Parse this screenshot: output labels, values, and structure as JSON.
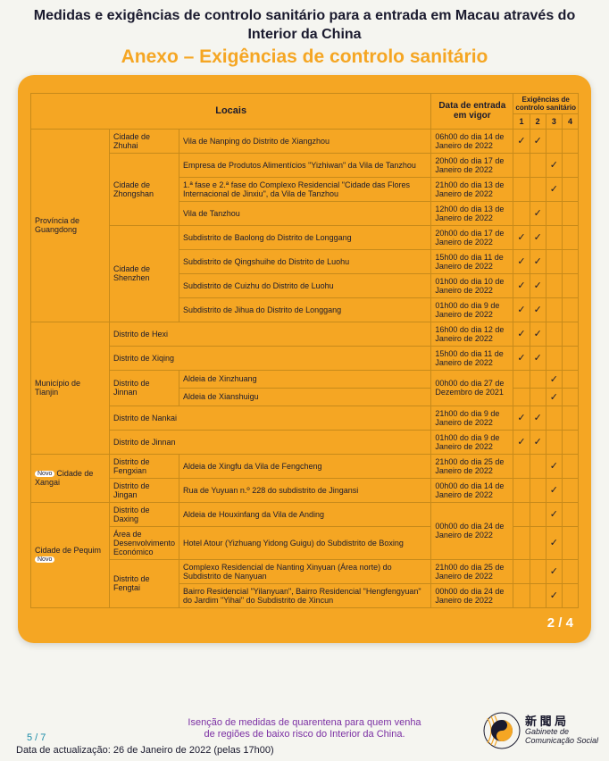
{
  "header": {
    "title": "Medidas e exigências de controlo sanitário para a entrada em Macau através do Interior da China",
    "subtitle": "Anexo – Exigências de controlo sanitário"
  },
  "table": {
    "headers": {
      "locais": "Locais",
      "data": "Data de entrada em vigor",
      "exig": "Exigências de controlo sanitário",
      "c1": "1",
      "c2": "2",
      "c3": "3",
      "c4": "4"
    },
    "groups": [
      {
        "province": "Província de Guangdong",
        "rowspan": 8,
        "cityBlocks": [
          {
            "city": "Cidade de Zhuhai",
            "rows": [
              {
                "detail": "Vila de Nanping do Distrito de Xiangzhou",
                "date": "06h00 do dia 14 de Janeiro de 2022",
                "c": [
                  true,
                  true,
                  false,
                  false
                ]
              }
            ]
          },
          {
            "city": "Cidade de Zhongshan",
            "rows": [
              {
                "detail": "Empresa de Produtos Alimentícios \"Yizhiwan\" da Vila de Tanzhou",
                "date": "20h00 do dia 17 de Janeiro de 2022",
                "c": [
                  false,
                  false,
                  true,
                  false
                ]
              },
              {
                "detail": "1.ª fase e 2.ª fase do Complexo Residencial \"Cidade das Flores Internacional de Jinxiu\", da Vila de Tanzhou",
                "date": "21h00 do dia 13 de Janeiro de 2022",
                "c": [
                  false,
                  false,
                  true,
                  false
                ]
              },
              {
                "detail": "Vila de Tanzhou",
                "date": "12h00 do dia 13 de Janeiro de 2022",
                "c": [
                  false,
                  true,
                  false,
                  false
                ]
              }
            ]
          },
          {
            "city": "Cidade de Shenzhen",
            "rows": [
              {
                "detail": "Subdistrito de Baolong do Distrito de Longgang",
                "date": "20h00 do dia 17 de Janeiro de 2022",
                "c": [
                  true,
                  true,
                  false,
                  false
                ]
              },
              {
                "detail": "Subdistrito de Qingshuihe do Distrito de Luohu",
                "date": "15h00 do dia 11 de Janeiro de 2022",
                "c": [
                  true,
                  true,
                  false,
                  false
                ]
              },
              {
                "detail": "Subdistrito de Cuizhu do Distrito de Luohu",
                "date": "01h00 do dia 10 de Janeiro de 2022",
                "c": [
                  true,
                  true,
                  false,
                  false
                ]
              },
              {
                "detail": "Subdistrito de Jihua do Distrito de Longgang",
                "date": "01h00 do dia 9 de Janeiro de 2022",
                "c": [
                  true,
                  true,
                  false,
                  false
                ]
              }
            ]
          }
        ]
      },
      {
        "province": "Município de Tianjin",
        "rowspan": 6,
        "cityBlocks": [
          {
            "city": "Distrito de Hexi",
            "colspan": 2,
            "rows": [
              {
                "detail": "",
                "date": "16h00 do dia 12 de Janeiro de 2022",
                "c": [
                  true,
                  true,
                  false,
                  false
                ]
              }
            ]
          },
          {
            "city": "Distrito de Xiqing",
            "colspan": 2,
            "rows": [
              {
                "detail": "",
                "date": "15h00 do dia 11 de Janeiro de 2022",
                "c": [
                  true,
                  true,
                  false,
                  false
                ]
              }
            ]
          },
          {
            "city": "Distrito de Jinnan",
            "rows": [
              {
                "detail": "Aldeia de Xinzhuang",
                "date": "00h00 do dia 27 de Dezembro de 2021",
                "dateRowspan": 2,
                "c": [
                  false,
                  false,
                  true,
                  false
                ]
              },
              {
                "detail": "Aldeia de Xianshuigu",
                "c": [
                  false,
                  false,
                  true,
                  false
                ]
              }
            ]
          },
          {
            "city": "Distrito de Nankai",
            "colspan": 2,
            "rows": [
              {
                "detail": "",
                "date": "21h00 do dia 9 de Janeiro de 2022",
                "c": [
                  true,
                  true,
                  false,
                  false
                ]
              }
            ]
          },
          {
            "city": "Distrito de Jinnan",
            "colspan": 2,
            "rows": [
              {
                "detail": "",
                "date": "01h00 do dia 9 de Janeiro de 2022",
                "c": [
                  true,
                  true,
                  false,
                  false
                ]
              }
            ]
          }
        ]
      },
      {
        "province": "Cidade de Xangai",
        "rowspan": 2,
        "novo": true,
        "cityBlocks": [
          {
            "city": "Distrito de Fengxian",
            "rows": [
              {
                "detail": "Aldeia de Xingfu da Vila de Fengcheng",
                "date": "21h00 do dia 25 de Janeiro de 2022",
                "c": [
                  false,
                  false,
                  true,
                  false
                ]
              }
            ]
          },
          {
            "city": "Distrito de Jingan",
            "rows": [
              {
                "detail": "Rua de Yuyuan n.º 228 do subdistrito de Jingansi",
                "date": "00h00 do dia 14 de Janeiro de 2022",
                "c": [
                  false,
                  false,
                  true,
                  false
                ]
              }
            ]
          }
        ]
      },
      {
        "province": "Cidade de Pequim",
        "rowspan": 4,
        "novo": true,
        "novoPos": 2,
        "cityBlocks": [
          {
            "city": "Distrito de Daxing",
            "rows": [
              {
                "detail": "Aldeia de Houxinfang da Vila de Anding",
                "date": "00h00 do dia 24 de Janeiro de 2022",
                "dateRowspan": 2,
                "c": [
                  false,
                  false,
                  true,
                  false
                ]
              }
            ]
          },
          {
            "city": "Área de Desenvolvimento Económico",
            "rows": [
              {
                "detail": "Hotel Atour (Yizhuang Yidong Guigu) do Subdistrito de Boxing",
                "c": [
                  false,
                  false,
                  true,
                  false
                ]
              }
            ]
          },
          {
            "city": "Distrito de Fengtai",
            "rows": [
              {
                "detail": "Complexo Residencial de Nanting Xinyuan (Área norte) do Subdistrito de Nanyuan",
                "date": "21h00 do dia 25 de Janeiro de 2022",
                "c": [
                  false,
                  false,
                  true,
                  false
                ]
              },
              {
                "detail": "Bairro Residencial \"Yilanyuan\", Bairro Residencial \"Hengfengyuan\" do Jardim \"Yihai\" do Subdistrito de Xincun",
                "date": "00h00 do dia 24 de Janeiro de 2022",
                "c": [
                  false,
                  false,
                  true,
                  false
                ]
              }
            ]
          }
        ]
      }
    ]
  },
  "pager": {
    "current": "2",
    "sep": " / ",
    "total": "4"
  },
  "footer": {
    "quarantine_l1": "Isenção de medidas de quarentena para quem venha",
    "quarantine_l2": "de regiões de baixo risco do Interior da China.",
    "pagecount": "5 / 7",
    "updated": "Data de actualização: 26 de Janeiro de 2022 (pelas 17h00)",
    "logo_cn": "新 聞 局",
    "logo_pt1": "Gabinete de",
    "logo_pt2": "Comunicação Social"
  },
  "badge": {
    "novo": "Novo"
  },
  "check": "✓"
}
